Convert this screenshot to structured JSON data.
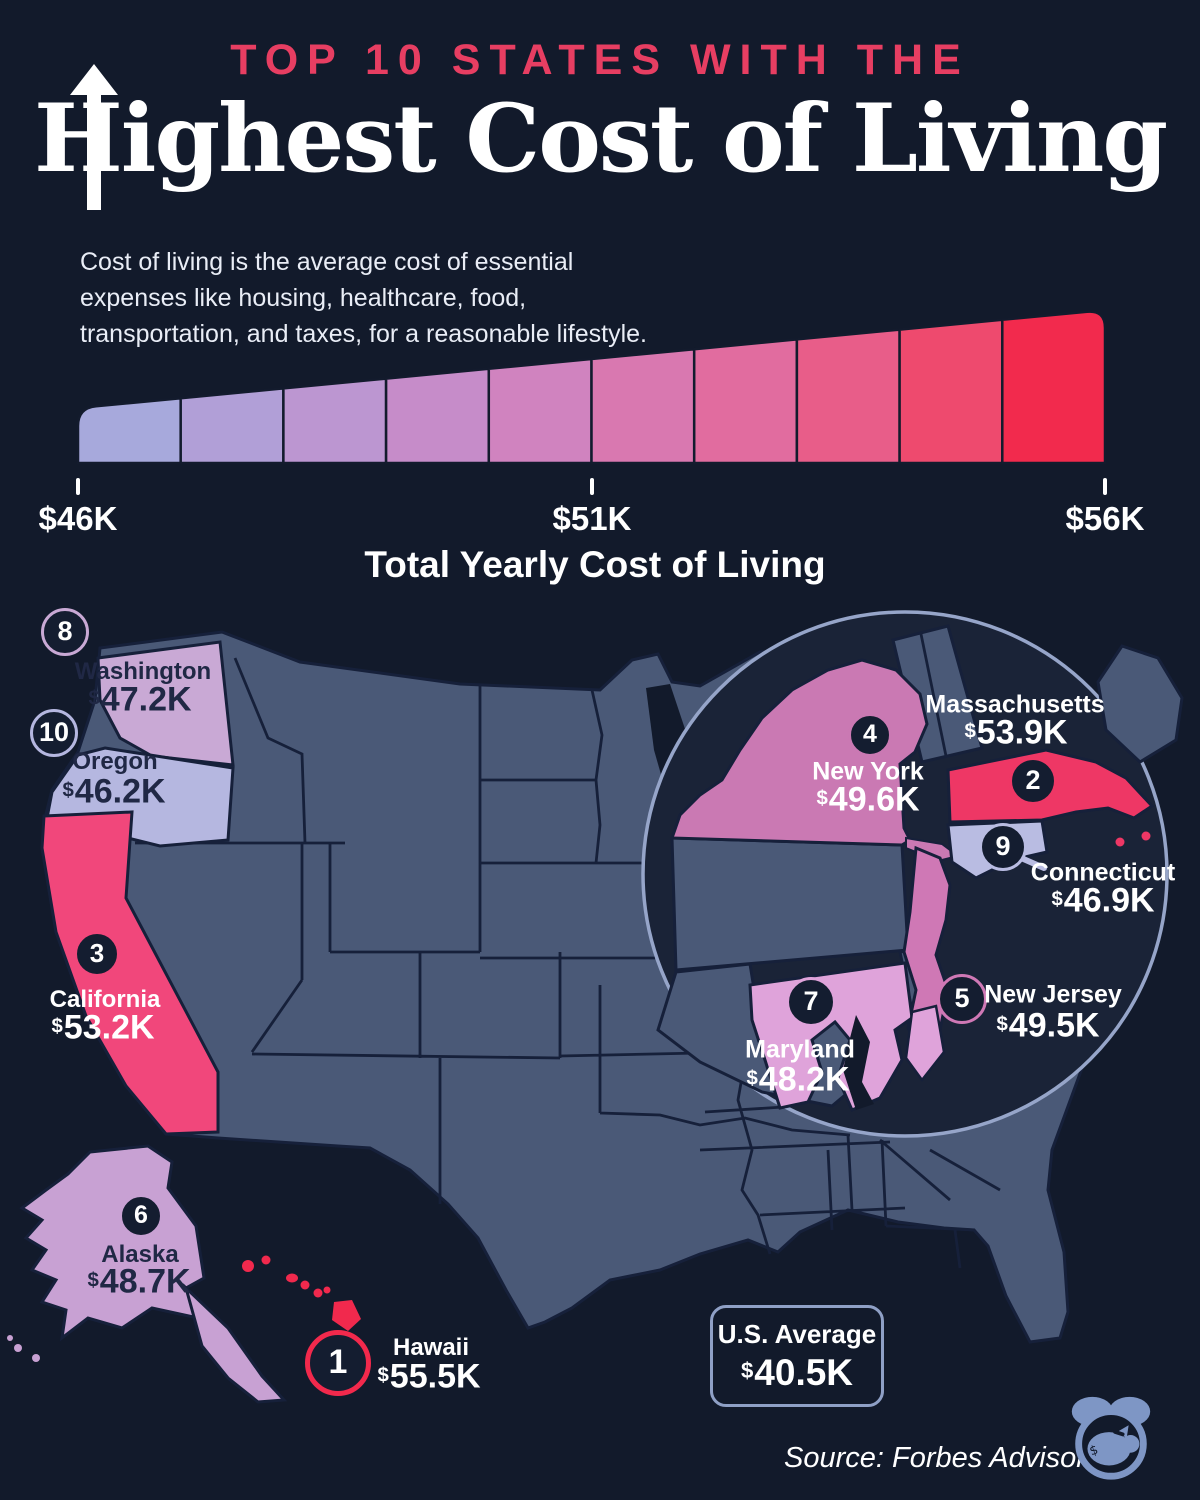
{
  "header": {
    "eyebrow": "TOP 10 STATES WITH THE",
    "title": "Highest Cost of Living",
    "description": "Cost of living is the average cost of essential expenses like housing, healthcare, food, transportation, and taxes, for a reasonable lifestyle."
  },
  "chart_data": {
    "type": "heatmap",
    "currency": "$",
    "scale": {
      "label": "Total Yearly Cost of Living",
      "ticks": [
        "$46K",
        "$51K",
        "$56K"
      ],
      "min_usd": 46000,
      "max_usd": 56000,
      "segments": 10,
      "colors": [
        "#a7a9dc",
        "#b19fd7",
        "#bc96d1",
        "#c68cc9",
        "#d083bf",
        "#d978b0",
        "#e16c9f",
        "#e85d89",
        "#ee4a6e",
        "#f22a4d"
      ]
    },
    "points": [
      {
        "rank": 1,
        "state": "Hawaii",
        "value": "55.5K",
        "value_usd": 55500
      },
      {
        "rank": 2,
        "state": "Massachusetts",
        "value": "53.9K",
        "value_usd": 53900
      },
      {
        "rank": 3,
        "state": "California",
        "value": "53.2K",
        "value_usd": 53200
      },
      {
        "rank": 4,
        "state": "New York",
        "value": "49.6K",
        "value_usd": 49600
      },
      {
        "rank": 5,
        "state": "New Jersey",
        "value": "49.5K",
        "value_usd": 49500
      },
      {
        "rank": 6,
        "state": "Alaska",
        "value": "48.7K",
        "value_usd": 48700
      },
      {
        "rank": 7,
        "state": "Maryland",
        "value": "48.2K",
        "value_usd": 48200
      },
      {
        "rank": 8,
        "state": "Washington",
        "value": "47.2K",
        "value_usd": 47200
      },
      {
        "rank": 9,
        "state": "Connecticut",
        "value": "46.9K",
        "value_usd": 46900
      },
      {
        "rank": 10,
        "state": "Oregon",
        "value": "46.2K",
        "value_usd": 46200
      }
    ],
    "us_average": {
      "label": "U.S. Average",
      "value": "40.5K",
      "value_usd": 40500
    }
  },
  "footer": {
    "source": "Source: Forbes Advisor"
  },
  "palette": {
    "background": "#121a2b",
    "eyebrow_pink": "#e73e62",
    "map_base": "#4a5977",
    "map_border": "#16203a",
    "inset_background": "#1a2337",
    "inset_ring": "#96a5c9",
    "state_colors": {
      "Hawaii": "#f1294d",
      "Massachusetts": "#ee3765",
      "California": "#f1477b",
      "New York": "#ca79b3",
      "New Jersey": "#cf78b5",
      "Alaska": "#c8a1d3",
      "Maryland": "#dfa3da",
      "Washington": "#c9a9d5",
      "Connecticut": "#b9bce2",
      "Oregon": "#b5b7e0"
    }
  }
}
